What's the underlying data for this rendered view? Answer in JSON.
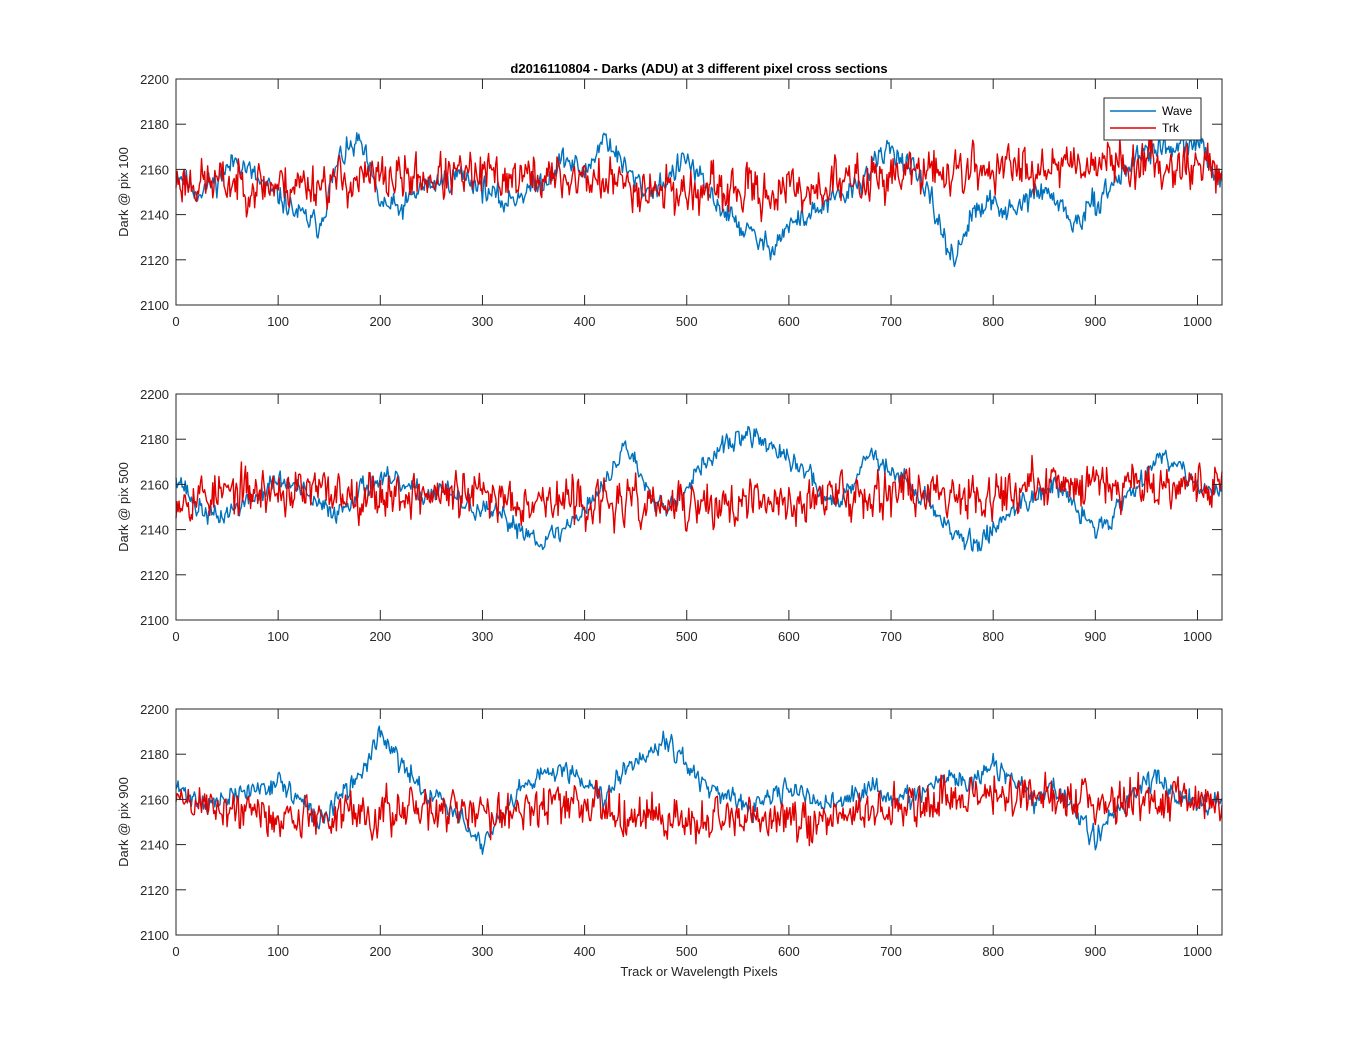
{
  "figure": {
    "title": "d2016110804 - Darks (ADU) at 3 different pixel cross sections",
    "xlabel": "Track or Wavelength Pixels"
  },
  "colors": {
    "wave": "#0072BD",
    "trk": "#E00000",
    "axes": "#262626"
  },
  "chart_data": [
    {
      "type": "line",
      "title": "d2016110804 - Darks (ADU) at 3 different pixel cross sections",
      "xlabel": "",
      "ylabel": "Dark @ pix 100",
      "xlim": [
        0,
        1024
      ],
      "ylim": [
        2100,
        2200
      ],
      "xticks": [
        0,
        100,
        200,
        300,
        400,
        500,
        600,
        700,
        800,
        900,
        1000
      ],
      "yticks": [
        2100,
        2120,
        2140,
        2160,
        2180,
        2200
      ],
      "grid": false,
      "legend": {
        "position": "top-right",
        "entries": [
          "Wave",
          "Trk"
        ]
      },
      "series": [
        {
          "name": "Wave",
          "color": "#0072BD",
          "x": [
            0,
            20,
            40,
            60,
            80,
            100,
            120,
            140,
            160,
            180,
            200,
            220,
            240,
            260,
            280,
            300,
            320,
            340,
            360,
            380,
            400,
            420,
            440,
            460,
            480,
            500,
            520,
            540,
            560,
            580,
            600,
            620,
            640,
            660,
            680,
            700,
            720,
            740,
            760,
            780,
            800,
            820,
            840,
            860,
            880,
            900,
            920,
            940,
            960,
            980,
            1000,
            1024
          ],
          "values": [
            2160,
            2150,
            2155,
            2165,
            2155,
            2148,
            2140,
            2135,
            2165,
            2172,
            2145,
            2142,
            2152,
            2155,
            2158,
            2152,
            2145,
            2150,
            2155,
            2165,
            2158,
            2175,
            2160,
            2150,
            2155,
            2165,
            2150,
            2140,
            2132,
            2125,
            2135,
            2140,
            2145,
            2150,
            2160,
            2170,
            2160,
            2145,
            2120,
            2140,
            2145,
            2140,
            2150,
            2148,
            2135,
            2145,
            2155,
            2165,
            2170,
            2168,
            2172,
            2155
          ],
          "noise": 7,
          "seed": 11
        },
        {
          "name": "Trk",
          "color": "#E00000",
          "x": [
            0,
            100,
            200,
            300,
            400,
            500,
            600,
            700,
            800,
            880,
            1000,
            1024
          ],
          "values": [
            2155,
            2153,
            2156,
            2157,
            2156,
            2150,
            2150,
            2158,
            2160,
            2164,
            2162,
            2160
          ],
          "noise": 13,
          "seed": 23
        }
      ]
    },
    {
      "type": "line",
      "title": "",
      "xlabel": "",
      "ylabel": "Dark @ pix 500",
      "xlim": [
        0,
        1024
      ],
      "ylim": [
        2100,
        2200
      ],
      "xticks": [
        0,
        100,
        200,
        300,
        400,
        500,
        600,
        700,
        800,
        900,
        1000
      ],
      "yticks": [
        2100,
        2120,
        2140,
        2160,
        2180,
        2200
      ],
      "grid": false,
      "series": [
        {
          "name": "Wave",
          "color": "#0072BD",
          "x": [
            0,
            20,
            40,
            60,
            80,
            100,
            120,
            140,
            160,
            180,
            200,
            220,
            240,
            260,
            280,
            300,
            320,
            340,
            360,
            380,
            400,
            420,
            440,
            460,
            480,
            500,
            520,
            540,
            560,
            580,
            600,
            620,
            640,
            660,
            680,
            700,
            720,
            740,
            760,
            780,
            800,
            820,
            840,
            860,
            880,
            900,
            920,
            940,
            960,
            980,
            1000,
            1024
          ],
          "values": [
            2165,
            2150,
            2145,
            2150,
            2155,
            2162,
            2158,
            2150,
            2148,
            2158,
            2162,
            2160,
            2155,
            2158,
            2152,
            2148,
            2145,
            2140,
            2135,
            2140,
            2150,
            2160,
            2178,
            2160,
            2150,
            2160,
            2170,
            2178,
            2182,
            2178,
            2170,
            2165,
            2150,
            2160,
            2175,
            2165,
            2160,
            2150,
            2140,
            2132,
            2140,
            2150,
            2155,
            2160,
            2150,
            2140,
            2148,
            2160,
            2172,
            2170,
            2160,
            2155
          ],
          "noise": 6,
          "seed": 37
        },
        {
          "name": "Trk",
          "color": "#E00000",
          "x": [
            0,
            100,
            200,
            300,
            400,
            500,
            600,
            700,
            800,
            900,
            1024
          ],
          "values": [
            2155,
            2157,
            2156,
            2155,
            2152,
            2150,
            2152,
            2158,
            2156,
            2162,
            2160
          ],
          "noise": 13,
          "seed": 53
        }
      ]
    },
    {
      "type": "line",
      "title": "",
      "xlabel": "Track or Wavelength Pixels",
      "ylabel": "Dark @ pix 900",
      "xlim": [
        0,
        1024
      ],
      "ylim": [
        2100,
        2200
      ],
      "xticks": [
        0,
        100,
        200,
        300,
        400,
        500,
        600,
        700,
        800,
        900,
        1000
      ],
      "yticks": [
        2100,
        2120,
        2140,
        2160,
        2180,
        2200
      ],
      "grid": false,
      "series": [
        {
          "name": "Wave",
          "color": "#0072BD",
          "x": [
            0,
            20,
            40,
            60,
            80,
            100,
            120,
            140,
            160,
            180,
            200,
            220,
            240,
            260,
            280,
            300,
            320,
            340,
            360,
            380,
            400,
            420,
            440,
            460,
            480,
            500,
            520,
            540,
            560,
            580,
            600,
            620,
            640,
            660,
            680,
            700,
            720,
            740,
            760,
            780,
            800,
            820,
            840,
            860,
            880,
            900,
            920,
            940,
            960,
            980,
            1000,
            1024
          ],
          "values": [
            2165,
            2160,
            2158,
            2162,
            2165,
            2168,
            2160,
            2150,
            2160,
            2170,
            2190,
            2175,
            2165,
            2160,
            2150,
            2140,
            2152,
            2165,
            2170,
            2175,
            2168,
            2162,
            2175,
            2180,
            2188,
            2175,
            2165,
            2160,
            2155,
            2160,
            2165,
            2160,
            2158,
            2160,
            2165,
            2162,
            2160,
            2165,
            2170,
            2168,
            2175,
            2168,
            2160,
            2165,
            2155,
            2142,
            2155,
            2165,
            2170,
            2162,
            2158,
            2162
          ],
          "noise": 6,
          "seed": 71
        },
        {
          "name": "Trk",
          "color": "#E00000",
          "x": [
            0,
            100,
            200,
            300,
            400,
            500,
            600,
            700,
            800,
            900,
            1024
          ],
          "values": [
            2160,
            2152,
            2154,
            2155,
            2158,
            2150,
            2150,
            2155,
            2162,
            2160,
            2160
          ],
          "noise": 12,
          "seed": 89
        }
      ]
    }
  ]
}
